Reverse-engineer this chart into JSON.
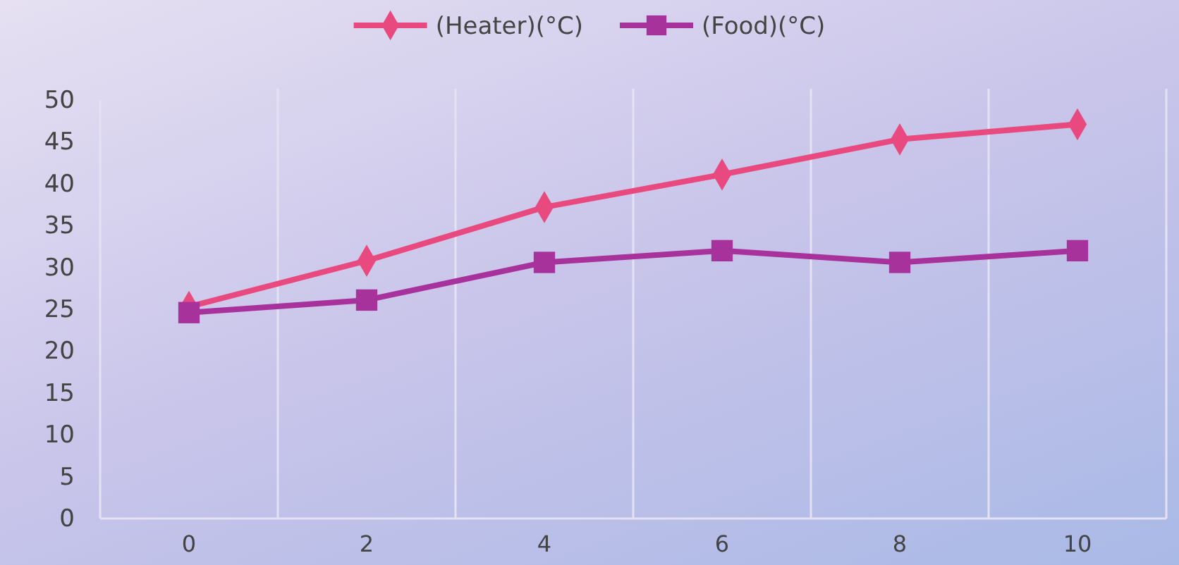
{
  "chart_data": {
    "type": "line",
    "categories": [
      "0",
      "2",
      "4",
      "6",
      "8",
      "10"
    ],
    "series": [
      {
        "name": "(Heater)(°C)",
        "color": "#e84a7f",
        "marker": "diamond",
        "values": [
          25.3,
          30.8,
          37.2,
          41.1,
          45.3,
          47.1
        ]
      },
      {
        "name": "(Food)(°C)",
        "color": "#a8329c",
        "marker": "square",
        "values": [
          24.6,
          26.1,
          30.6,
          32,
          30.6,
          32
        ]
      }
    ],
    "ylim": [
      0,
      50
    ],
    "yticks": [
      0,
      5,
      10,
      15,
      20,
      25,
      30,
      35,
      40,
      45,
      50
    ],
    "grid": "x",
    "legend": "top",
    "line_style": "solid"
  }
}
